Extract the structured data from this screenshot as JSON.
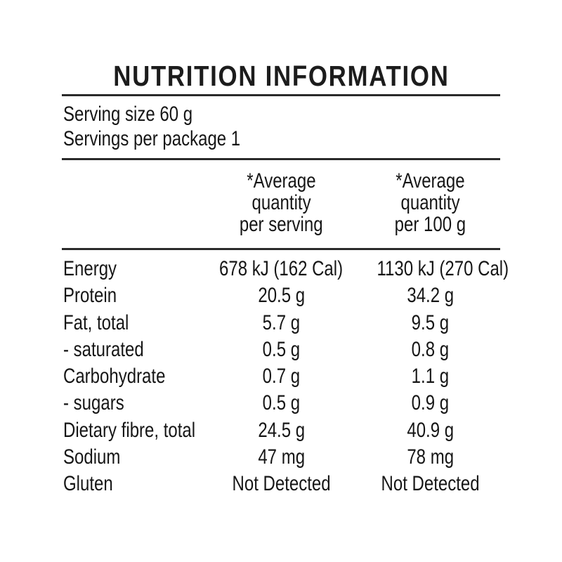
{
  "label": {
    "title": "NUTRITION INFORMATION",
    "serving_size": "Serving size 60 g",
    "servings_per_package": "Servings per package 1",
    "columns": {
      "per_serving": {
        "line1": "*Average",
        "line2": "quantity",
        "line3": "per serving"
      },
      "per_100g": {
        "line1": "*Average",
        "line2": "quantity",
        "line3": "per 100 g"
      }
    },
    "rows": [
      {
        "nutrient": "Energy",
        "per_serving": "678 kJ (162 Cal)",
        "per_100g": "1130 kJ (270 Cal)"
      },
      {
        "nutrient": "Protein",
        "per_serving": "20.5 g",
        "per_100g": "34.2 g"
      },
      {
        "nutrient": "Fat, total",
        "per_serving": "5.7 g",
        "per_100g": "9.5 g"
      },
      {
        "nutrient": "- saturated",
        "per_serving": "0.5 g",
        "per_100g": "0.8 g"
      },
      {
        "nutrient": "Carbohydrate",
        "per_serving": "0.7 g",
        "per_100g": "1.1 g"
      },
      {
        "nutrient": "- sugars",
        "per_serving": "0.5 g",
        "per_100g": "0.9 g"
      },
      {
        "nutrient": "Dietary fibre, total",
        "per_serving": "24.5 g",
        "per_100g": "40.9 g"
      },
      {
        "nutrient": "Sodium",
        "per_serving": "47 mg",
        "per_100g": "78 mg"
      },
      {
        "nutrient": "Gluten",
        "per_serving": "Not Detected",
        "per_100g": "Not Detected"
      }
    ],
    "colors": {
      "background": "#ffffff",
      "text": "#161616",
      "rule": "#2a2a2a"
    }
  }
}
